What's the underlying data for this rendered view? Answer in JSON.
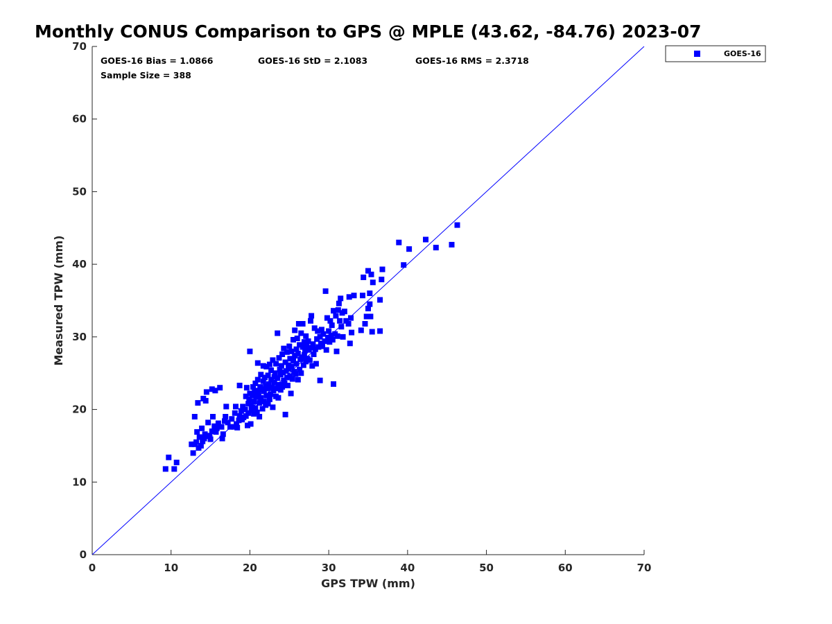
{
  "chart_data": {
    "type": "scatter",
    "title": "Monthly CONUS Comparison to GPS @ MPLE (43.62, -84.76) 2023-07",
    "xlabel": "GPS TPW (mm)",
    "ylabel": "Measured TPW (mm)",
    "xlim": [
      0,
      70
    ],
    "ylim": [
      0,
      70
    ],
    "xticks": [
      "0",
      "10",
      "20",
      "30",
      "40",
      "50",
      "60",
      "70"
    ],
    "yticks": [
      "0",
      "10",
      "20",
      "30",
      "40",
      "50",
      "60",
      "70"
    ],
    "grid": false,
    "legend_position": "outside-top-right",
    "reference_line": {
      "kind": "one-to-one",
      "color": "#0000ff"
    },
    "stats": {
      "bias": "GOES-16 Bias = 1.0866",
      "std": "GOES-16 StD = 2.1083",
      "rms": "GOES-16 RMS = 2.3718",
      "sample": "Sample Size = 388"
    },
    "series": [
      {
        "name": "GOES-16",
        "color": "#0000ff",
        "marker": "square",
        "points": [
          [
            9.3,
            11.8
          ],
          [
            9.7,
            13.4
          ],
          [
            10.4,
            11.8
          ],
          [
            10.7,
            12.7
          ],
          [
            12.6,
            15.2
          ],
          [
            12.8,
            14.0
          ],
          [
            13.0,
            15.2
          ],
          [
            13.0,
            19.0
          ],
          [
            13.2,
            15.5
          ],
          [
            13.3,
            16.9
          ],
          [
            13.4,
            20.9
          ],
          [
            13.5,
            14.7
          ],
          [
            13.6,
            16.2
          ],
          [
            13.8,
            15.0
          ],
          [
            13.9,
            17.4
          ],
          [
            14.0,
            15.6
          ],
          [
            14.1,
            21.5
          ],
          [
            14.2,
            16.0
          ],
          [
            14.3,
            16.6
          ],
          [
            14.4,
            21.2
          ],
          [
            14.5,
            22.4
          ],
          [
            14.6,
            16.4
          ],
          [
            14.7,
            18.2
          ],
          [
            14.9,
            16.3
          ],
          [
            15.0,
            15.9
          ],
          [
            15.2,
            17.0
          ],
          [
            15.2,
            22.8
          ],
          [
            15.3,
            19.0
          ],
          [
            15.5,
            17.7
          ],
          [
            15.6,
            22.6
          ],
          [
            15.7,
            16.9
          ],
          [
            15.8,
            17.4
          ],
          [
            16.0,
            18.1
          ],
          [
            16.2,
            23.0
          ],
          [
            16.4,
            17.6
          ],
          [
            16.5,
            16.0
          ],
          [
            16.6,
            16.6
          ],
          [
            16.8,
            18.4
          ],
          [
            16.9,
            19.0
          ],
          [
            17.0,
            20.4
          ],
          [
            17.2,
            18.2
          ],
          [
            17.5,
            17.6
          ],
          [
            17.7,
            18.7
          ],
          [
            18.0,
            17.6
          ],
          [
            18.1,
            19.5
          ],
          [
            18.2,
            20.4
          ],
          [
            18.3,
            18.0
          ],
          [
            18.4,
            17.5
          ],
          [
            18.6,
            18.5
          ],
          [
            18.7,
            19.1
          ],
          [
            18.7,
            23.3
          ],
          [
            18.9,
            19.8
          ],
          [
            19.0,
            18.6
          ],
          [
            19.1,
            20.4
          ],
          [
            19.2,
            18.9
          ],
          [
            19.4,
            20.0
          ],
          [
            19.5,
            21.8
          ],
          [
            19.5,
            19.1
          ],
          [
            19.6,
            23.0
          ],
          [
            19.7,
            17.8
          ],
          [
            19.8,
            20.8
          ],
          [
            19.8,
            19.5
          ],
          [
            19.9,
            21.4
          ],
          [
            20.0,
            22.2
          ],
          [
            20.0,
            28.0
          ],
          [
            20.1,
            18.0
          ],
          [
            20.2,
            19.9
          ],
          [
            20.2,
            20.6
          ],
          [
            20.3,
            21.9
          ],
          [
            20.4,
            23.1
          ],
          [
            20.5,
            19.4
          ],
          [
            20.5,
            21.1
          ],
          [
            20.6,
            22.4
          ],
          [
            20.7,
            20.2
          ],
          [
            20.7,
            23.6
          ],
          [
            20.8,
            21.7
          ],
          [
            20.9,
            22.6
          ],
          [
            20.9,
            19.6
          ],
          [
            21.0,
            26.4
          ],
          [
            21.0,
            24.1
          ],
          [
            21.1,
            22.3
          ],
          [
            21.2,
            20.9
          ],
          [
            21.2,
            19.0
          ],
          [
            21.3,
            23.1
          ],
          [
            21.4,
            21.6
          ],
          [
            21.4,
            24.8
          ],
          [
            21.5,
            22.8
          ],
          [
            21.6,
            20.1
          ],
          [
            21.7,
            23.9
          ],
          [
            21.7,
            26.0
          ],
          [
            21.8,
            21.1
          ],
          [
            21.8,
            22.5
          ],
          [
            21.9,
            24.4
          ],
          [
            22.0,
            20.6
          ],
          [
            22.0,
            23.2
          ],
          [
            22.1,
            25.9
          ],
          [
            22.1,
            21.9
          ],
          [
            22.2,
            22.9
          ],
          [
            22.3,
            24.7
          ],
          [
            22.3,
            20.8
          ],
          [
            22.4,
            23.5
          ],
          [
            22.5,
            26.2
          ],
          [
            22.5,
            21.4
          ],
          [
            22.6,
            22.1
          ],
          [
            22.7,
            24.1
          ],
          [
            22.7,
            25.4
          ],
          [
            22.8,
            23.0
          ],
          [
            22.9,
            20.3
          ],
          [
            22.9,
            26.8
          ],
          [
            23.0,
            22.6
          ],
          [
            23.1,
            24.5
          ],
          [
            23.1,
            23.7
          ],
          [
            23.2,
            25.0
          ],
          [
            23.3,
            21.8
          ],
          [
            23.3,
            26.3
          ],
          [
            23.4,
            22.9
          ],
          [
            23.5,
            30.5
          ],
          [
            23.5,
            24.3
          ],
          [
            23.6,
            21.6
          ],
          [
            23.7,
            23.4
          ],
          [
            23.7,
            27.1
          ],
          [
            23.8,
            25.5
          ],
          [
            23.9,
            22.7
          ],
          [
            23.9,
            24.8
          ],
          [
            24.0,
            26.0
          ],
          [
            24.1,
            23.1
          ],
          [
            24.1,
            27.6
          ],
          [
            24.2,
            25.1
          ],
          [
            24.3,
            24.0
          ],
          [
            24.3,
            28.4
          ],
          [
            24.4,
            23.6
          ],
          [
            24.5,
            26.5
          ],
          [
            24.5,
            19.3
          ],
          [
            24.6,
            25.3
          ],
          [
            24.7,
            24.4
          ],
          [
            24.7,
            27.9
          ],
          [
            24.8,
            23.3
          ],
          [
            24.9,
            26.1
          ],
          [
            24.9,
            25.6
          ],
          [
            25.0,
            28.7
          ],
          [
            25.1,
            24.6
          ],
          [
            25.1,
            27.0
          ],
          [
            25.2,
            22.2
          ],
          [
            25.3,
            25.9
          ],
          [
            25.3,
            28.0
          ],
          [
            25.4,
            24.2
          ],
          [
            25.5,
            29.6
          ],
          [
            25.5,
            26.7
          ],
          [
            25.6,
            25.2
          ],
          [
            25.7,
            30.9
          ],
          [
            25.7,
            27.4
          ],
          [
            25.8,
            24.9
          ],
          [
            25.9,
            28.3
          ],
          [
            25.9,
            26.3
          ],
          [
            26.0,
            29.8
          ],
          [
            26.1,
            24.1
          ],
          [
            26.1,
            27.7
          ],
          [
            26.2,
            31.8
          ],
          [
            26.3,
            25.5
          ],
          [
            26.3,
            28.9
          ],
          [
            26.4,
            26.9
          ],
          [
            26.5,
            30.5
          ],
          [
            26.5,
            25.0
          ],
          [
            26.6,
            27.2
          ],
          [
            26.7,
            31.8
          ],
          [
            26.7,
            28.6
          ],
          [
            26.8,
            26.1
          ],
          [
            26.9,
            29.3
          ],
          [
            26.9,
            27.5
          ],
          [
            27.0,
            28.1
          ],
          [
            27.1,
            30.1
          ],
          [
            27.1,
            26.6
          ],
          [
            27.2,
            28.8
          ],
          [
            27.3,
            27.0
          ],
          [
            27.4,
            29.4
          ],
          [
            27.5,
            28.2
          ],
          [
            27.6,
            26.8
          ],
          [
            27.7,
            32.2
          ],
          [
            27.8,
            28.5
          ],
          [
            27.8,
            32.9
          ],
          [
            27.9,
            26.0
          ],
          [
            28.0,
            29.0
          ],
          [
            28.1,
            27.6
          ],
          [
            28.2,
            31.2
          ],
          [
            28.3,
            28.3
          ],
          [
            28.4,
            26.3
          ],
          [
            28.5,
            29.7
          ],
          [
            28.6,
            30.8
          ],
          [
            28.7,
            28.6
          ],
          [
            28.9,
            24.0
          ],
          [
            28.9,
            30.0
          ],
          [
            29.0,
            29.1
          ],
          [
            29.1,
            31.0
          ],
          [
            29.2,
            28.7
          ],
          [
            29.3,
            30.4
          ],
          [
            29.5,
            29.4
          ],
          [
            29.6,
            36.3
          ],
          [
            29.7,
            28.2
          ],
          [
            29.8,
            32.6
          ],
          [
            29.9,
            29.9
          ],
          [
            30.0,
            30.8
          ],
          [
            30.1,
            29.3
          ],
          [
            30.2,
            32.2
          ],
          [
            30.3,
            30.2
          ],
          [
            30.4,
            31.6
          ],
          [
            30.5,
            29.6
          ],
          [
            30.6,
            33.6
          ],
          [
            30.6,
            23.5
          ],
          [
            30.8,
            30.4
          ],
          [
            30.9,
            32.9
          ],
          [
            31.0,
            28.0
          ],
          [
            31.1,
            30.1
          ],
          [
            31.2,
            33.7
          ],
          [
            31.3,
            34.6
          ],
          [
            31.4,
            32.2
          ],
          [
            31.5,
            35.3
          ],
          [
            31.6,
            31.4
          ],
          [
            31.7,
            33.3
          ],
          [
            31.8,
            30.0
          ],
          [
            32.0,
            33.5
          ],
          [
            32.2,
            32.2
          ],
          [
            32.5,
            31.8
          ],
          [
            32.6,
            35.5
          ],
          [
            32.7,
            29.1
          ],
          [
            32.8,
            32.6
          ],
          [
            32.9,
            30.6
          ],
          [
            33.2,
            35.7
          ],
          [
            34.1,
            30.9
          ],
          [
            34.3,
            35.7
          ],
          [
            34.4,
            38.2
          ],
          [
            34.6,
            31.8
          ],
          [
            34.8,
            32.8
          ],
          [
            35.0,
            39.1
          ],
          [
            35.0,
            33.9
          ],
          [
            35.2,
            36.0
          ],
          [
            35.2,
            34.5
          ],
          [
            35.3,
            32.8
          ],
          [
            35.4,
            38.6
          ],
          [
            35.5,
            30.7
          ],
          [
            35.6,
            37.5
          ],
          [
            36.5,
            35.1
          ],
          [
            36.5,
            30.8
          ],
          [
            36.7,
            37.9
          ],
          [
            36.8,
            39.3
          ],
          [
            38.9,
            43.0
          ],
          [
            39.5,
            39.9
          ],
          [
            40.2,
            42.1
          ],
          [
            42.3,
            43.4
          ],
          [
            43.6,
            42.3
          ],
          [
            45.6,
            42.7
          ],
          [
            46.3,
            45.4
          ]
        ]
      }
    ]
  }
}
